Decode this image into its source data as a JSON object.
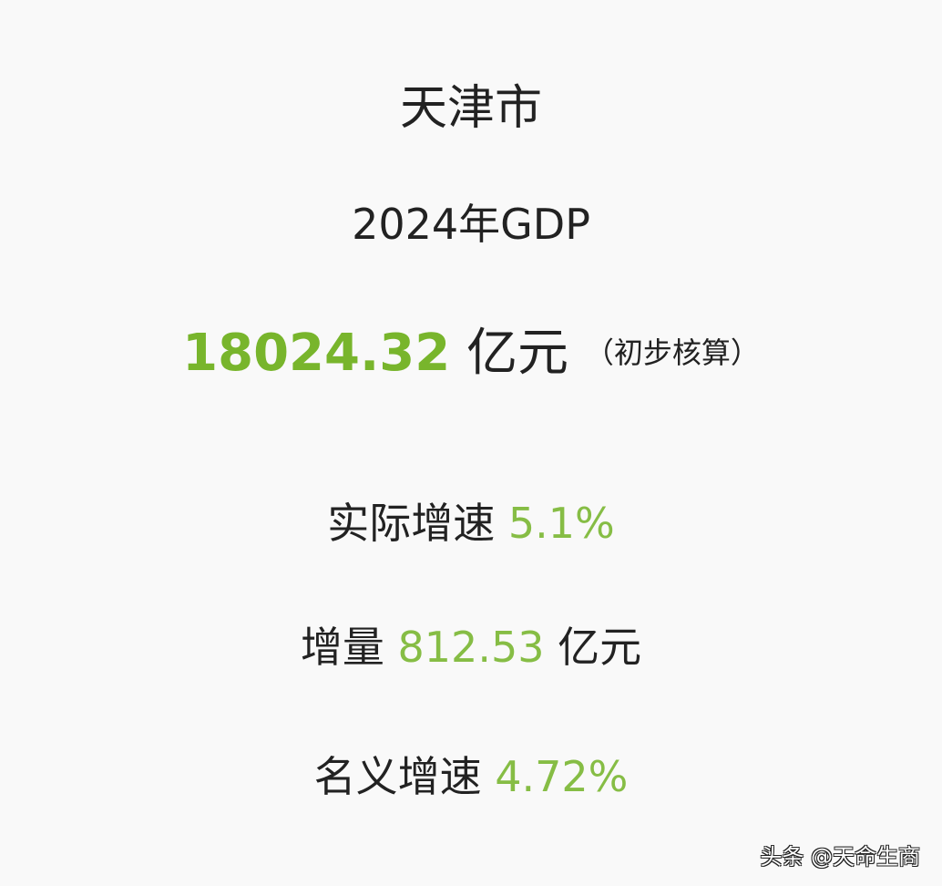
{
  "title": "天津市",
  "subtitle": "2024年GDP",
  "gdp": {
    "value": "18024.32",
    "unit": "亿元",
    "note": "（初步核算）"
  },
  "stats": [
    {
      "label": "实际增速",
      "value": "5.1%",
      "unit": ""
    },
    {
      "label": "增量",
      "value": "812.53",
      "unit": "亿元"
    },
    {
      "label": "名义增速",
      "value": "4.72%",
      "unit": ""
    }
  ],
  "watermark": "头条 @天命生商",
  "colors": {
    "primary_green": "#78b52c",
    "secondary_green": "#86bd45"
  }
}
